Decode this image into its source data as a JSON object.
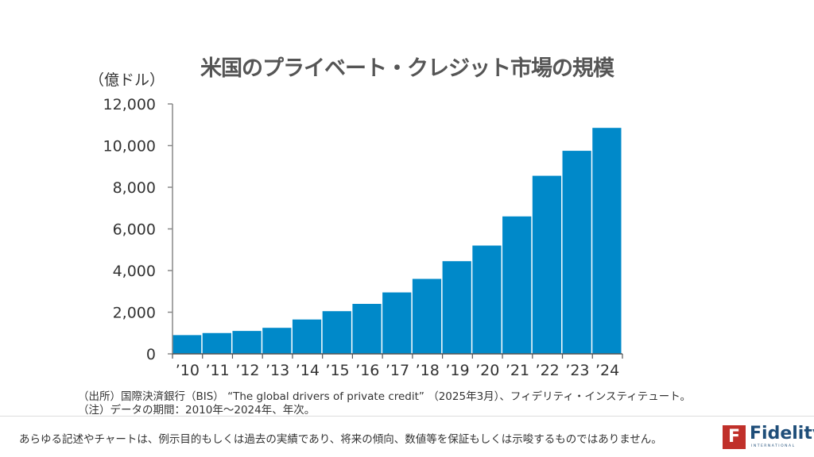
{
  "chart_data": {
    "type": "bar",
    "title": "米国のプライベート・クレジット市場の規模",
    "ylabel": "（億ドル）",
    "categories": [
      "’10",
      "’11",
      "’12",
      "’13",
      "’14",
      "’15",
      "’16",
      "’17",
      "’18",
      "’19",
      "’20",
      "’21",
      "’22",
      "’23",
      "’24"
    ],
    "values": [
      900,
      1000,
      1100,
      1250,
      1650,
      2050,
      2400,
      2950,
      3600,
      4450,
      5200,
      6600,
      8550,
      9750,
      10850
    ],
    "ylim": [
      0,
      12000
    ],
    "yticks": [
      0,
      2000,
      4000,
      6000,
      8000,
      10000,
      12000
    ],
    "ytick_labels": [
      "0",
      "2,000",
      "4,000",
      "6,000",
      "8,000",
      "10,000",
      "12,000"
    ],
    "bar_color": "#0089c9",
    "grid": false
  },
  "notes": {
    "source": "（出所）国際決済銀行（BIS） “The global drivers of private credit” （2025年3月）、フィデリティ・インスティテュート。",
    "note": "（注）データの期間：2010年～2024年、年次。"
  },
  "footer": {
    "disclaimer": "あらゆる記述やチャートは、例示目的もしくは過去の実績であり、将来の傾向、数値等を保証もしくは示唆するものではありません。",
    "logo_text": "Fidelity",
    "logo_sub": "INTERNATIONAL",
    "logo_color": "#c0302a"
  }
}
